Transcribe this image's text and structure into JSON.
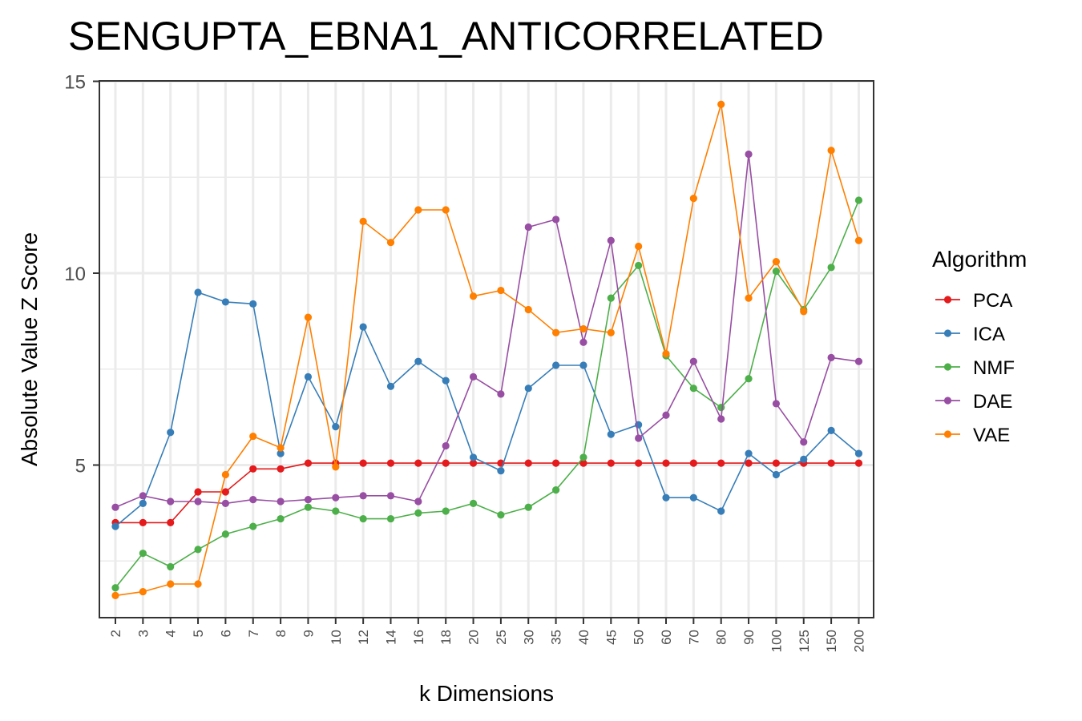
{
  "chart_data": {
    "type": "line",
    "title": "SENGUPTA_EBNA1_ANTICORRELATED",
    "xlabel": "k Dimensions",
    "ylabel": "Absolute Value Z Score",
    "categories": [
      "2",
      "3",
      "4",
      "5",
      "6",
      "7",
      "8",
      "9",
      "10",
      "12",
      "14",
      "16",
      "18",
      "20",
      "25",
      "30",
      "35",
      "40",
      "45",
      "50",
      "60",
      "70",
      "80",
      "90",
      "100",
      "125",
      "150",
      "200"
    ],
    "yticks": [
      5,
      10,
      15
    ],
    "ylim": [
      1.0,
      15.0
    ],
    "grid": true,
    "legend": {
      "title": "Algorithm",
      "position": "right"
    },
    "series": [
      {
        "name": "PCA",
        "color": "#e41a1c",
        "values": [
          3.5,
          3.5,
          3.5,
          4.3,
          4.3,
          4.9,
          4.9,
          5.05,
          5.05,
          5.05,
          5.05,
          5.05,
          5.05,
          5.05,
          5.05,
          5.05,
          5.05,
          5.05,
          5.05,
          5.05,
          5.05,
          5.05,
          5.05,
          5.05,
          5.05,
          5.05,
          5.05,
          5.05
        ]
      },
      {
        "name": "ICA",
        "color": "#377eb8",
        "values": [
          3.4,
          4.0,
          5.85,
          9.5,
          9.25,
          9.2,
          5.3,
          7.3,
          6.0,
          8.6,
          7.05,
          7.7,
          7.2,
          5.2,
          4.85,
          7.0,
          7.6,
          7.6,
          5.8,
          6.05,
          4.15,
          4.15,
          3.8,
          5.3,
          4.75,
          5.15,
          5.9,
          5.3
        ]
      },
      {
        "name": "NMF",
        "color": "#4daf4a",
        "values": [
          1.8,
          2.7,
          2.35,
          2.8,
          3.2,
          3.4,
          3.6,
          3.9,
          3.8,
          3.6,
          3.6,
          3.75,
          3.8,
          4.0,
          3.7,
          3.9,
          4.35,
          5.2,
          9.35,
          10.2,
          7.85,
          7.0,
          6.5,
          7.25,
          10.05,
          9.05,
          10.15,
          11.9
        ]
      },
      {
        "name": "DAE",
        "color": "#984ea3",
        "values": [
          3.9,
          4.2,
          4.05,
          4.05,
          4.0,
          4.1,
          4.05,
          4.1,
          4.15,
          4.2,
          4.2,
          4.05,
          5.5,
          7.3,
          6.85,
          11.2,
          11.4,
          8.2,
          10.85,
          5.7,
          6.3,
          7.7,
          6.2,
          13.1,
          6.6,
          5.6,
          7.8,
          7.7
        ]
      },
      {
        "name": "VAE",
        "color": "#ff7f00",
        "values": [
          1.6,
          1.7,
          1.9,
          1.9,
          4.75,
          5.75,
          5.45,
          8.85,
          4.95,
          11.35,
          10.8,
          11.65,
          11.65,
          9.4,
          9.55,
          9.05,
          8.45,
          8.55,
          8.45,
          10.7,
          7.9,
          11.95,
          14.4,
          9.35,
          10.3,
          9.0,
          13.2,
          10.85
        ]
      }
    ]
  }
}
